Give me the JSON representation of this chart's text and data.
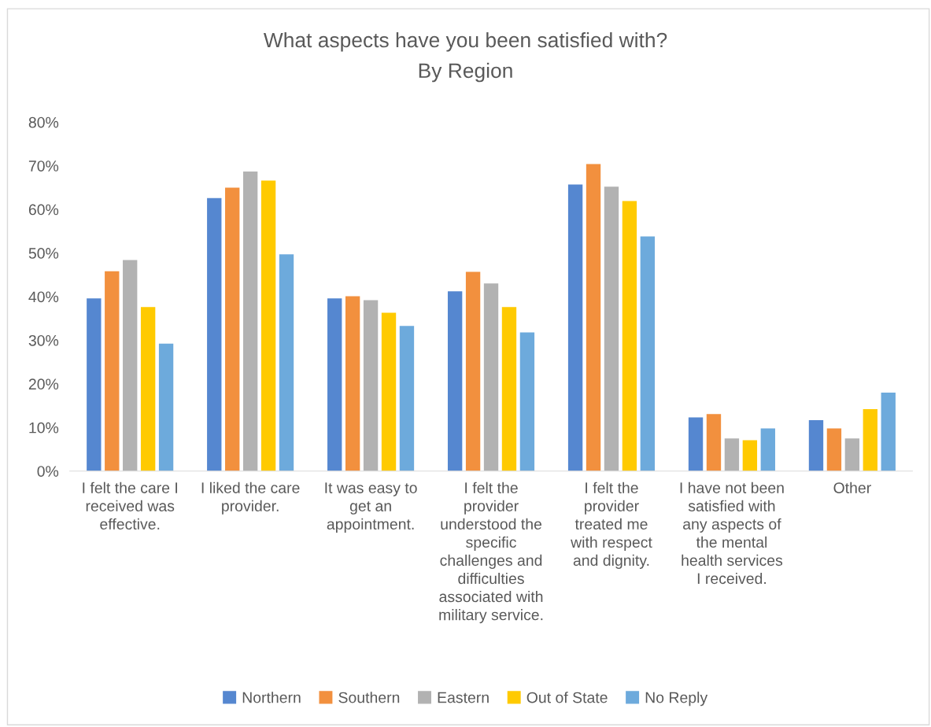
{
  "chart_data": {
    "type": "bar",
    "title": "What aspects have you been satisfied with?",
    "subtitle": "By Region",
    "categories": [
      "I felt the care I\nreceived was\neffective.",
      "I liked the care\nprovider.",
      "It was easy to\nget an\nappointment.",
      "I felt the\nprovider\nunderstood the\nspecific\nchallenges and\ndifficulties\nassociated with\nmilitary service.",
      "I felt the\nprovider\ntreated me\nwith respect\nand dignity.",
      "I have not been\nsatisfied with\nany aspects of\nthe mental\nhealth services\nI received.",
      "Other"
    ],
    "series": [
      {
        "name": "Northern",
        "color": "#5587d0",
        "values": [
          39.6,
          62.6,
          39.6,
          41.2,
          65.7,
          12.3,
          11.7
        ]
      },
      {
        "name": "Southern",
        "color": "#f2903e",
        "values": [
          45.8,
          65.0,
          40.1,
          45.7,
          70.4,
          13.1,
          9.8
        ]
      },
      {
        "name": "Eastern",
        "color": "#b2b2b2",
        "values": [
          48.4,
          68.7,
          39.2,
          43.0,
          65.2,
          7.5,
          7.5
        ]
      },
      {
        "name": "Out of State",
        "color": "#ffca00",
        "values": [
          37.6,
          66.6,
          36.3,
          37.6,
          61.9,
          7.1,
          14.2
        ]
      },
      {
        "name": "No Reply",
        "color": "#6daadc",
        "values": [
          29.2,
          49.7,
          33.3,
          31.8,
          53.8,
          9.8,
          18.0
        ]
      }
    ],
    "ylim": [
      0,
      80
    ],
    "yticks": [
      {
        "value": 0,
        "label": "0%"
      },
      {
        "value": 10,
        "label": "10%"
      },
      {
        "value": 20,
        "label": "20%"
      },
      {
        "value": 30,
        "label": "30%"
      },
      {
        "value": 40,
        "label": "40%"
      },
      {
        "value": 50,
        "label": "50%"
      },
      {
        "value": 60,
        "label": "60%"
      },
      {
        "value": 70,
        "label": "70%"
      },
      {
        "value": 80,
        "label": "80%"
      }
    ],
    "legend": "bottom"
  }
}
